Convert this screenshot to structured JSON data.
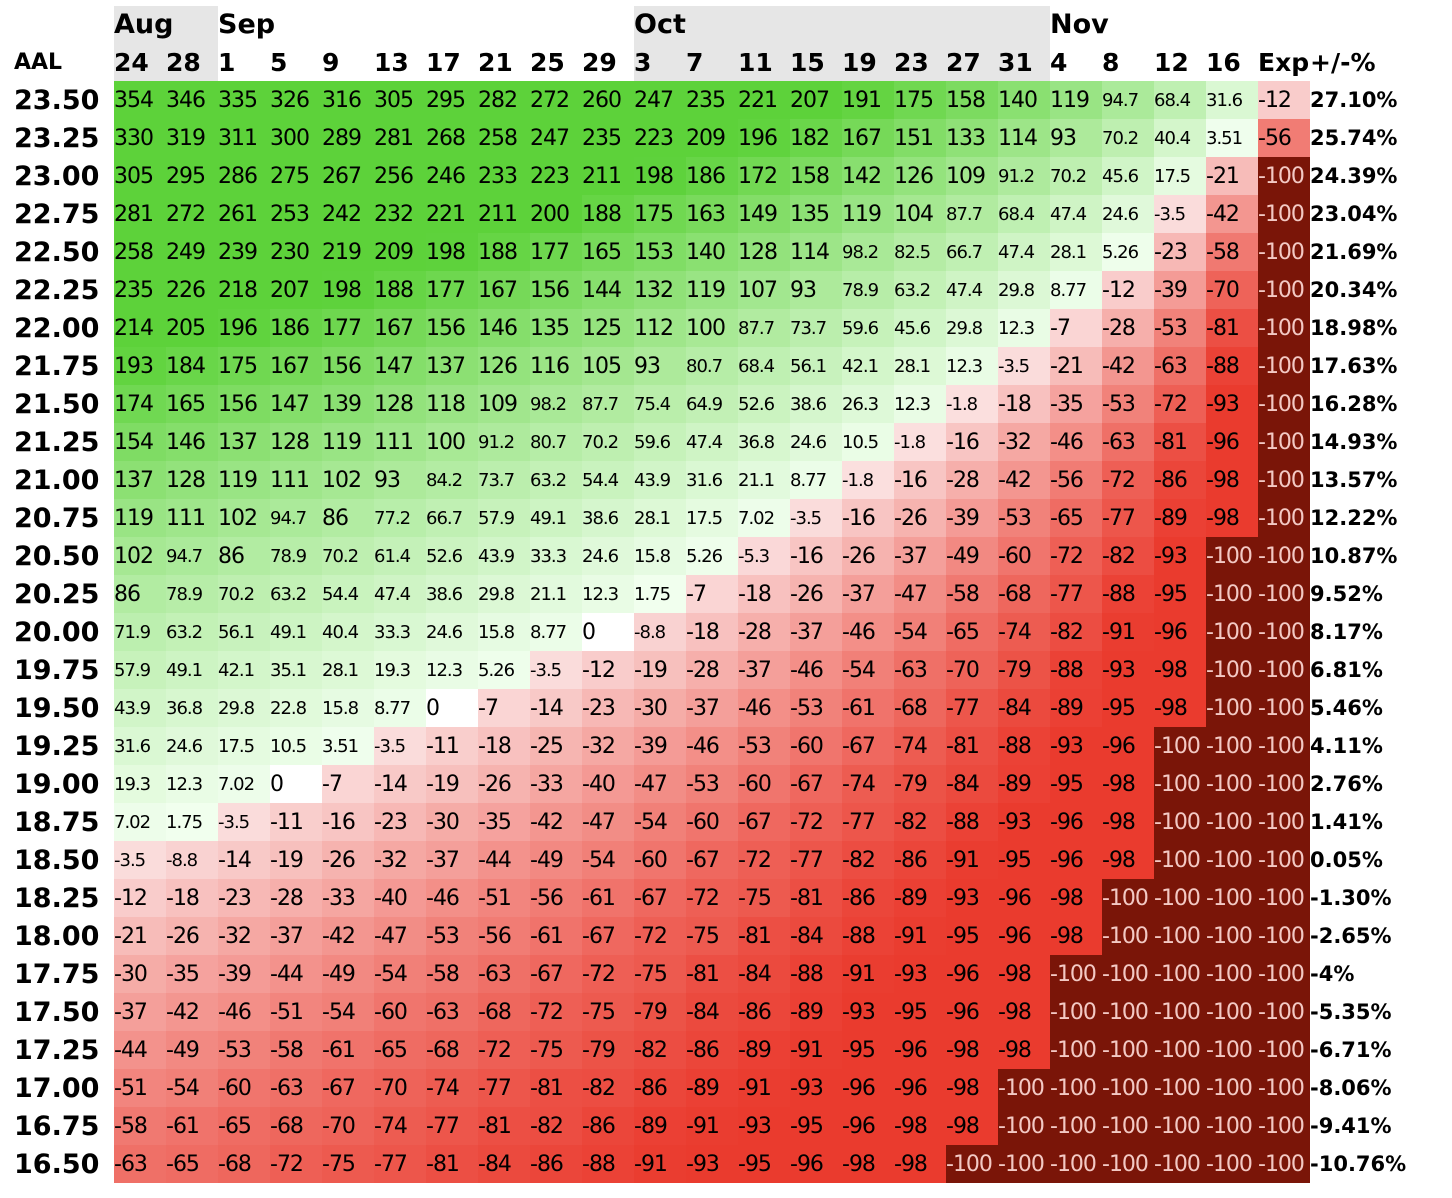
{
  "ticker": "AAL",
  "pct_header": "+/-%",
  "months": [
    {
      "label": "Aug",
      "span": 2,
      "shade": true
    },
    {
      "label": "Sep",
      "span": 8,
      "shade": false
    },
    {
      "label": "Oct",
      "span": 8,
      "shade": true
    },
    {
      "label": "Nov",
      "span": 5,
      "shade": false
    }
  ],
  "dates": [
    "24",
    "28",
    "1",
    "5",
    "9",
    "13",
    "17",
    "21",
    "25",
    "29",
    "3",
    "7",
    "11",
    "15",
    "19",
    "23",
    "27",
    "31",
    "4",
    "8",
    "12",
    "16",
    "Exp"
  ],
  "rows": [
    {
      "price": "23.50",
      "pct": "27.10%",
      "values": [
        "354",
        "346",
        "335",
        "326",
        "316",
        "305",
        "295",
        "282",
        "272",
        "260",
        "247",
        "235",
        "221",
        "207",
        "191",
        "175",
        "158",
        "140",
        "119",
        "94.7",
        "68.4",
        "31.6",
        "-12"
      ]
    },
    {
      "price": "23.25",
      "pct": "25.74%",
      "values": [
        "330",
        "319",
        "311",
        "300",
        "289",
        "281",
        "268",
        "258",
        "247",
        "235",
        "223",
        "209",
        "196",
        "182",
        "167",
        "151",
        "133",
        "114",
        "93",
        "70.2",
        "40.4",
        "3.51",
        "-56"
      ]
    },
    {
      "price": "23.00",
      "pct": "24.39%",
      "values": [
        "305",
        "295",
        "286",
        "275",
        "267",
        "256",
        "246",
        "233",
        "223",
        "211",
        "198",
        "186",
        "172",
        "158",
        "142",
        "126",
        "109",
        "91.2",
        "70.2",
        "45.6",
        "17.5",
        "-21",
        "-100"
      ]
    },
    {
      "price": "22.75",
      "pct": "23.04%",
      "values": [
        "281",
        "272",
        "261",
        "253",
        "242",
        "232",
        "221",
        "211",
        "200",
        "188",
        "175",
        "163",
        "149",
        "135",
        "119",
        "104",
        "87.7",
        "68.4",
        "47.4",
        "24.6",
        "-3.5",
        "-42",
        "-100"
      ]
    },
    {
      "price": "22.50",
      "pct": "21.69%",
      "values": [
        "258",
        "249",
        "239",
        "230",
        "219",
        "209",
        "198",
        "188",
        "177",
        "165",
        "153",
        "140",
        "128",
        "114",
        "98.2",
        "82.5",
        "66.7",
        "47.4",
        "28.1",
        "5.26",
        "-23",
        "-58",
        "-100"
      ]
    },
    {
      "price": "22.25",
      "pct": "20.34%",
      "values": [
        "235",
        "226",
        "218",
        "207",
        "198",
        "188",
        "177",
        "167",
        "156",
        "144",
        "132",
        "119",
        "107",
        "93",
        "78.9",
        "63.2",
        "47.4",
        "29.8",
        "8.77",
        "-12",
        "-39",
        "-70",
        "-100"
      ]
    },
    {
      "price": "22.00",
      "pct": "18.98%",
      "values": [
        "214",
        "205",
        "196",
        "186",
        "177",
        "167",
        "156",
        "146",
        "135",
        "125",
        "112",
        "100",
        "87.7",
        "73.7",
        "59.6",
        "45.6",
        "29.8",
        "12.3",
        "-7",
        "-28",
        "-53",
        "-81",
        "-100"
      ]
    },
    {
      "price": "21.75",
      "pct": "17.63%",
      "values": [
        "193",
        "184",
        "175",
        "167",
        "156",
        "147",
        "137",
        "126",
        "116",
        "105",
        "93",
        "80.7",
        "68.4",
        "56.1",
        "42.1",
        "28.1",
        "12.3",
        "-3.5",
        "-21",
        "-42",
        "-63",
        "-88",
        "-100"
      ]
    },
    {
      "price": "21.50",
      "pct": "16.28%",
      "values": [
        "174",
        "165",
        "156",
        "147",
        "139",
        "128",
        "118",
        "109",
        "98.2",
        "87.7",
        "75.4",
        "64.9",
        "52.6",
        "38.6",
        "26.3",
        "12.3",
        "-1.8",
        "-18",
        "-35",
        "-53",
        "-72",
        "-93",
        "-100"
      ]
    },
    {
      "price": "21.25",
      "pct": "14.93%",
      "values": [
        "154",
        "146",
        "137",
        "128",
        "119",
        "111",
        "100",
        "91.2",
        "80.7",
        "70.2",
        "59.6",
        "47.4",
        "36.8",
        "24.6",
        "10.5",
        "-1.8",
        "-16",
        "-32",
        "-46",
        "-63",
        "-81",
        "-96",
        "-100"
      ]
    },
    {
      "price": "21.00",
      "pct": "13.57%",
      "values": [
        "137",
        "128",
        "119",
        "111",
        "102",
        "93",
        "84.2",
        "73.7",
        "63.2",
        "54.4",
        "43.9",
        "31.6",
        "21.1",
        "8.77",
        "-1.8",
        "-16",
        "-28",
        "-42",
        "-56",
        "-72",
        "-86",
        "-98",
        "-100"
      ]
    },
    {
      "price": "20.75",
      "pct": "12.22%",
      "values": [
        "119",
        "111",
        "102",
        "94.7",
        "86",
        "77.2",
        "66.7",
        "57.9",
        "49.1",
        "38.6",
        "28.1",
        "17.5",
        "7.02",
        "-3.5",
        "-16",
        "-26",
        "-39",
        "-53",
        "-65",
        "-77",
        "-89",
        "-98",
        "-100"
      ]
    },
    {
      "price": "20.50",
      "pct": "10.87%",
      "values": [
        "102",
        "94.7",
        "86",
        "78.9",
        "70.2",
        "61.4",
        "52.6",
        "43.9",
        "33.3",
        "24.6",
        "15.8",
        "5.26",
        "-5.3",
        "-16",
        "-26",
        "-37",
        "-49",
        "-60",
        "-72",
        "-82",
        "-93",
        "-100",
        "-100"
      ]
    },
    {
      "price": "20.25",
      "pct": "9.52%",
      "values": [
        "86",
        "78.9",
        "70.2",
        "63.2",
        "54.4",
        "47.4",
        "38.6",
        "29.8",
        "21.1",
        "12.3",
        "1.75",
        "-7",
        "-18",
        "-26",
        "-37",
        "-47",
        "-58",
        "-68",
        "-77",
        "-88",
        "-95",
        "-100",
        "-100"
      ]
    },
    {
      "price": "20.00",
      "pct": "8.17%",
      "values": [
        "71.9",
        "63.2",
        "56.1",
        "49.1",
        "40.4",
        "33.3",
        "24.6",
        "15.8",
        "8.77",
        "0",
        "-8.8",
        "-18",
        "-28",
        "-37",
        "-46",
        "-54",
        "-65",
        "-74",
        "-82",
        "-91",
        "-96",
        "-100",
        "-100"
      ]
    },
    {
      "price": "19.75",
      "pct": "6.81%",
      "values": [
        "57.9",
        "49.1",
        "42.1",
        "35.1",
        "28.1",
        "19.3",
        "12.3",
        "5.26",
        "-3.5",
        "-12",
        "-19",
        "-28",
        "-37",
        "-46",
        "-54",
        "-63",
        "-70",
        "-79",
        "-88",
        "-93",
        "-98",
        "-100",
        "-100"
      ]
    },
    {
      "price": "19.50",
      "pct": "5.46%",
      "values": [
        "43.9",
        "36.8",
        "29.8",
        "22.8",
        "15.8",
        "8.77",
        "0",
        "-7",
        "-14",
        "-23",
        "-30",
        "-37",
        "-46",
        "-53",
        "-61",
        "-68",
        "-77",
        "-84",
        "-89",
        "-95",
        "-98",
        "-100",
        "-100"
      ]
    },
    {
      "price": "19.25",
      "pct": "4.11%",
      "values": [
        "31.6",
        "24.6",
        "17.5",
        "10.5",
        "3.51",
        "-3.5",
        "-11",
        "-18",
        "-25",
        "-32",
        "-39",
        "-46",
        "-53",
        "-60",
        "-67",
        "-74",
        "-81",
        "-88",
        "-93",
        "-96",
        "-100",
        "-100",
        "-100"
      ]
    },
    {
      "price": "19.00",
      "pct": "2.76%",
      "values": [
        "19.3",
        "12.3",
        "7.02",
        "0",
        "-7",
        "-14",
        "-19",
        "-26",
        "-33",
        "-40",
        "-47",
        "-53",
        "-60",
        "-67",
        "-74",
        "-79",
        "-84",
        "-89",
        "-95",
        "-98",
        "-100",
        "-100",
        "-100"
      ]
    },
    {
      "price": "18.75",
      "pct": "1.41%",
      "values": [
        "7.02",
        "1.75",
        "-3.5",
        "-11",
        "-16",
        "-23",
        "-30",
        "-35",
        "-42",
        "-47",
        "-54",
        "-60",
        "-67",
        "-72",
        "-77",
        "-82",
        "-88",
        "-93",
        "-96",
        "-98",
        "-100",
        "-100",
        "-100"
      ]
    },
    {
      "price": "18.50",
      "pct": "0.05%",
      "values": [
        "-3.5",
        "-8.8",
        "-14",
        "-19",
        "-26",
        "-32",
        "-37",
        "-44",
        "-49",
        "-54",
        "-60",
        "-67",
        "-72",
        "-77",
        "-82",
        "-86",
        "-91",
        "-95",
        "-96",
        "-98",
        "-100",
        "-100",
        "-100"
      ]
    },
    {
      "price": "18.25",
      "pct": "-1.30%",
      "values": [
        "-12",
        "-18",
        "-23",
        "-28",
        "-33",
        "-40",
        "-46",
        "-51",
        "-56",
        "-61",
        "-67",
        "-72",
        "-75",
        "-81",
        "-86",
        "-89",
        "-93",
        "-96",
        "-98",
        "-100",
        "-100",
        "-100",
        "-100"
      ]
    },
    {
      "price": "18.00",
      "pct": "-2.65%",
      "values": [
        "-21",
        "-26",
        "-32",
        "-37",
        "-42",
        "-47",
        "-53",
        "-56",
        "-61",
        "-67",
        "-72",
        "-75",
        "-81",
        "-84",
        "-88",
        "-91",
        "-95",
        "-96",
        "-98",
        "-100",
        "-100",
        "-100",
        "-100"
      ]
    },
    {
      "price": "17.75",
      "pct": "-4%",
      "values": [
        "-30",
        "-35",
        "-39",
        "-44",
        "-49",
        "-54",
        "-58",
        "-63",
        "-67",
        "-72",
        "-75",
        "-81",
        "-84",
        "-88",
        "-91",
        "-93",
        "-96",
        "-98",
        "-100",
        "-100",
        "-100",
        "-100",
        "-100"
      ]
    },
    {
      "price": "17.50",
      "pct": "-5.35%",
      "values": [
        "-37",
        "-42",
        "-46",
        "-51",
        "-54",
        "-60",
        "-63",
        "-68",
        "-72",
        "-75",
        "-79",
        "-84",
        "-86",
        "-89",
        "-93",
        "-95",
        "-96",
        "-98",
        "-100",
        "-100",
        "-100",
        "-100",
        "-100"
      ]
    },
    {
      "price": "17.25",
      "pct": "-6.71%",
      "values": [
        "-44",
        "-49",
        "-53",
        "-58",
        "-61",
        "-65",
        "-68",
        "-72",
        "-75",
        "-79",
        "-82",
        "-86",
        "-89",
        "-91",
        "-95",
        "-96",
        "-98",
        "-98",
        "-100",
        "-100",
        "-100",
        "-100",
        "-100"
      ]
    },
    {
      "price": "17.00",
      "pct": "-8.06%",
      "values": [
        "-51",
        "-54",
        "-60",
        "-63",
        "-67",
        "-70",
        "-74",
        "-77",
        "-81",
        "-82",
        "-86",
        "-89",
        "-91",
        "-93",
        "-96",
        "-96",
        "-98",
        "-100",
        "-100",
        "-100",
        "-100",
        "-100",
        "-100"
      ]
    },
    {
      "price": "16.75",
      "pct": "-9.41%",
      "values": [
        "-58",
        "-61",
        "-65",
        "-68",
        "-70",
        "-74",
        "-77",
        "-81",
        "-82",
        "-86",
        "-89",
        "-91",
        "-93",
        "-95",
        "-96",
        "-98",
        "-98",
        "-100",
        "-100",
        "-100",
        "-100",
        "-100",
        "-100"
      ]
    },
    {
      "price": "16.50",
      "pct": "-10.76%",
      "values": [
        "-63",
        "-65",
        "-68",
        "-72",
        "-75",
        "-77",
        "-81",
        "-84",
        "-86",
        "-88",
        "-91",
        "-93",
        "-95",
        "-96",
        "-98",
        "-98",
        "-100",
        "-100",
        "-100",
        "-100",
        "-100",
        "-100",
        "-100"
      ]
    }
  ],
  "separator_after_row": 20,
  "colors": {
    "positive_strong": "#5dd23a",
    "positive_light": "#f2fff0",
    "neutral": "#ffffff",
    "negative_light": "#fbe2e2",
    "negative_strong": "#ea3b2e",
    "total_loss": "#7a1508",
    "total_loss_text": "#f3c9c4"
  }
}
